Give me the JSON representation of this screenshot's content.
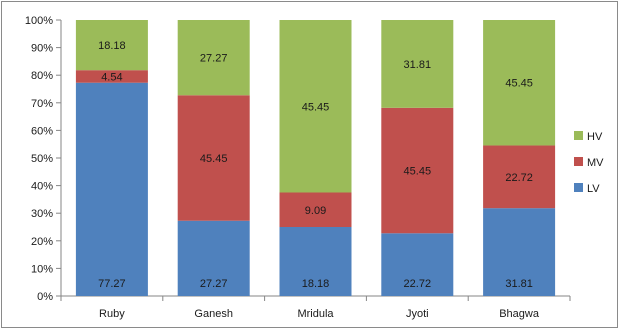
{
  "chart_data": {
    "type": "bar",
    "stacked": "percent",
    "categories": [
      "Ruby",
      "Ganesh",
      "Mridula",
      "Jyoti",
      "Bhagwa"
    ],
    "series": [
      {
        "name": "LV",
        "color": "#4f81bd",
        "values": [
          77.27,
          27.27,
          18.18,
          22.72,
          31.81
        ],
        "labels": [
          "77.27",
          "27.27",
          "18.18",
          "22.72",
          "31.81"
        ]
      },
      {
        "name": "MV",
        "color": "#c0504d",
        "values": [
          4.54,
          45.45,
          9.09,
          45.45,
          22.72
        ],
        "labels": [
          "4.54",
          "45.45",
          "9.09",
          "45.45",
          "22.72"
        ]
      },
      {
        "name": "HV",
        "color": "#9bbb59",
        "values": [
          18.18,
          27.27,
          45.45,
          31.81,
          45.45
        ],
        "labels": [
          "18.18",
          "27.27",
          "45.45",
          "31.81",
          "45.45"
        ]
      }
    ],
    "ylim": [
      0,
      100
    ],
    "yticks": [
      "0%",
      "10%",
      "20%",
      "30%",
      "40%",
      "50%",
      "60%",
      "70%",
      "80%",
      "90%",
      "100%"
    ],
    "legend_order": [
      "HV",
      "MV",
      "LV"
    ],
    "legend_position": "right",
    "grid": false
  }
}
